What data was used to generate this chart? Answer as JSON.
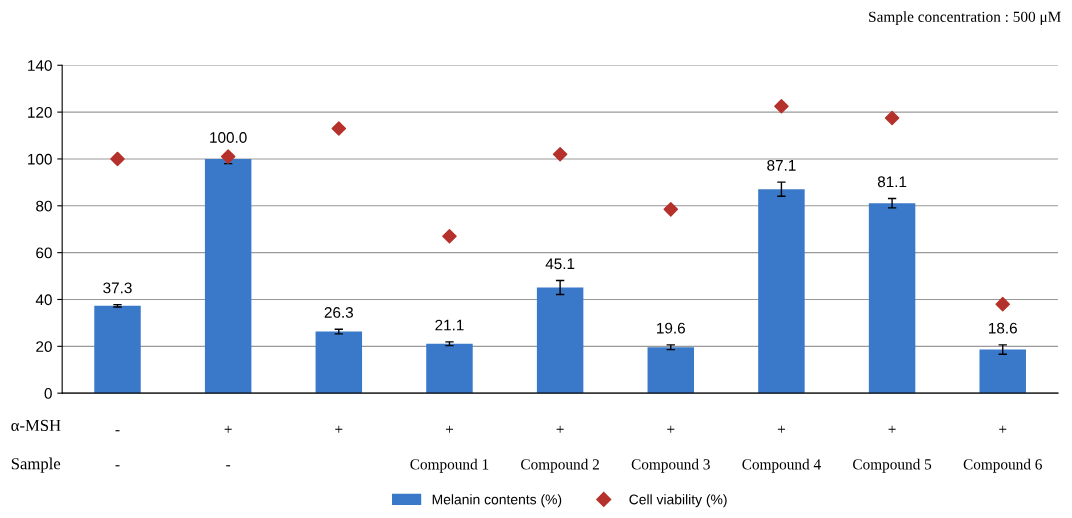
{
  "chart_data": {
    "type": "bar",
    "categories": [
      "-\n-",
      "+\n-",
      "+\n",
      "+\nCompound 1",
      "+\nCompound 2",
      "+\nCompound 3",
      "+\nCompound 4",
      "+\nCompound 5",
      "+\nCompound 6"
    ],
    "series": [
      {
        "name": "Melanin contents (%)",
        "color": "#3a78c9",
        "values": [
          37.3,
          100.0,
          26.3,
          21.1,
          45.1,
          19.6,
          87.1,
          81.1,
          18.6
        ],
        "errors": [
          0.5,
          2,
          1,
          0.8,
          3,
          1,
          3,
          2,
          2
        ],
        "value_labels": [
          "37.3",
          "100.0",
          "26.3",
          "21.1",
          "45.1",
          "19.6",
          "87.1",
          "81.1",
          "18.6"
        ]
      },
      {
        "name": "Cell viability (%)",
        "type": "scatter",
        "marker": "diamond",
        "color": "#b5312b",
        "values": [
          100,
          101,
          113,
          67,
          102,
          78.5,
          122.5,
          117.5,
          38
        ]
      }
    ],
    "ylim": [
      0,
      140
    ],
    "yticks": [
      0,
      20,
      40,
      60,
      80,
      100,
      120,
      140
    ],
    "grid": "y",
    "legend": "bottom",
    "annotations": [
      "Sample concentration : 500 μM",
      "α-MSH",
      "Sample"
    ]
  }
}
